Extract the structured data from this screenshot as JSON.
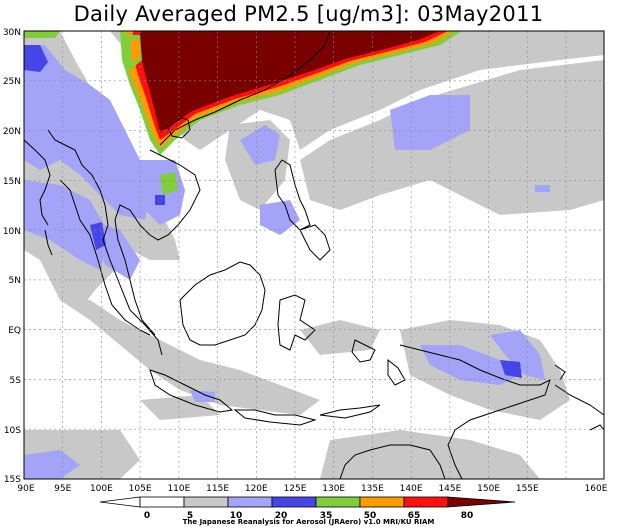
{
  "title": "Daily Averaged PM2.5 [ug/m3]: 03May2011",
  "lat_labels": [
    "30N",
    "25N",
    "20N",
    "15N",
    "10N",
    "5N",
    "EQ",
    "5S",
    "10S",
    "15S"
  ],
  "lon_labels": [
    "90E",
    "95E",
    "100E",
    "105E",
    "110E",
    "115E",
    "120E",
    "125E",
    "130E",
    "135E",
    "140E",
    "145E",
    "150E",
    "155E",
    "160E"
  ],
  "colorbar": {
    "ticks": [
      "0",
      "5",
      "10",
      "20",
      "35",
      "50",
      "65",
      "80"
    ],
    "colors": [
      "#ffffff",
      "#ffffff",
      "#c8c8c8",
      "#a3a3f7",
      "#4545e8",
      "#80ce3a",
      "#ff9b00",
      "#ff1010",
      "#7a0000"
    ]
  },
  "credit": "The Japanese Reanalysis for Aerosol (JRAero) v1.0 MRI/KU RIAM"
}
